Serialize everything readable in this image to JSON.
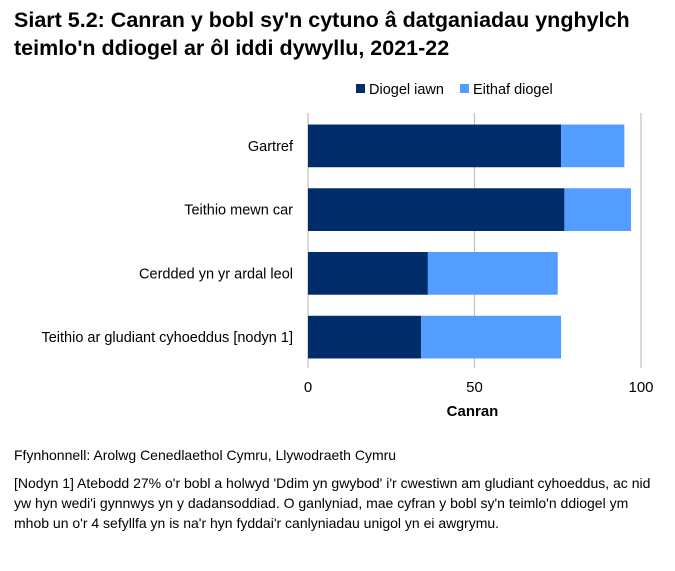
{
  "chart_data": {
    "type": "bar",
    "orientation": "horizontal",
    "stacked": true,
    "title": "Siart 5.2: Canran y bobl sy'n cytuno â datganiadau ynghylch teimlo'n ddiogel ar ôl iddi dywyllu, 2021-22",
    "categories": [
      "Gartref",
      "Teithio mewn car",
      "Cerdded yn yr ardal leol",
      "Teithio ar gludiant cyhoeddus [nodyn 1]"
    ],
    "series": [
      {
        "name": "Diogel iawn",
        "color": "#002D6A",
        "values": [
          76,
          77,
          36,
          34
        ]
      },
      {
        "name": "Eithaf diogel",
        "color": "#529DFF",
        "values": [
          19,
          20,
          39,
          42
        ]
      }
    ],
    "xlabel": "Canran",
    "ylabel": "",
    "xlim": [
      0,
      100
    ],
    "xticks": [
      "0",
      "50",
      "100"
    ],
    "grid": true,
    "legend": "top-right"
  },
  "footer": {
    "source": "Ffynhonnell: Arolwg Cenedlaethol Cymru, Llywodraeth Cymru",
    "note": "[Nodyn 1] Atebodd 27% o'r bobl a holwyd 'Ddim yn gwybod' i'r cwestiwn am gludiant cyhoeddus, ac nid yw hyn wedi'i gynnwys yn y dadansoddiad. O ganlyniad, mae cyfran y bobl sy'n teimlo'n ddiogel ym mhob un o'r 4 sefyllfa yn is na'r hyn fyddai'r canlyniadau unigol yn ei awgrymu."
  }
}
